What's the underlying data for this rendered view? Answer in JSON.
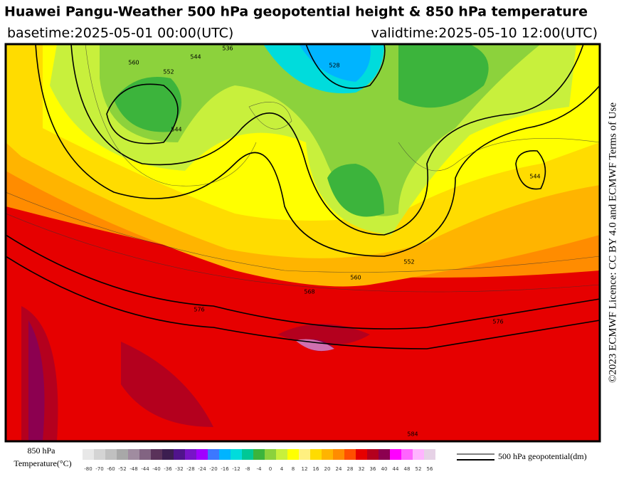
{
  "header": {
    "title": "Huawei Pangu-Weather 500 hPa geopotential height & 850 hPa temperature",
    "basetime": "basetime:2025-05-01 00:00(UTC)",
    "validtime": "validtime:2025-05-10 12:00(UTC)"
  },
  "license": "©2023 ECMWF Licence: CC BY 4.0 and ECMWF Terms of Use",
  "map": {
    "contour_labels": [
      "552",
      "544",
      "560",
      "528",
      "536",
      "544",
      "552",
      "560",
      "568",
      "576",
      "576",
      "544",
      "584"
    ]
  },
  "legend": {
    "temperature_title": [
      "850 hPa",
      "Temperature(°C)"
    ],
    "colorbar": {
      "labels": [
        "-80",
        "-70",
        "-60",
        "-52",
        "-48",
        "-44",
        "-40",
        "-36",
        "-32",
        "-28",
        "-24",
        "-20",
        "-16",
        "-12",
        "-8",
        "-4",
        "0",
        "4",
        "8",
        "12",
        "16",
        "20",
        "24",
        "28",
        "32",
        "36",
        "40",
        "44",
        "48",
        "52",
        "56"
      ],
      "colors": [
        "#e8e8e8",
        "#d4d4d4",
        "#c0c0c0",
        "#a8a8a8",
        "#a08ca0",
        "#826482",
        "#5a325a",
        "#3c1e50",
        "#50148c",
        "#7814c8",
        "#a000ff",
        "#3c78ff",
        "#00b4ff",
        "#00dcdc",
        "#00c896",
        "#3cb43c",
        "#8cd23c",
        "#c8f03c",
        "#ffff00",
        "#fff080",
        "#ffdc00",
        "#ffb400",
        "#ff8c00",
        "#ff5000",
        "#e60000",
        "#b4001e",
        "#8c0050",
        "#ff00ff",
        "#ff64ff",
        "#ffb4ff",
        "#e6d2e6"
      ]
    },
    "geopotential_label": "500 hPa geopotential(dm)"
  }
}
